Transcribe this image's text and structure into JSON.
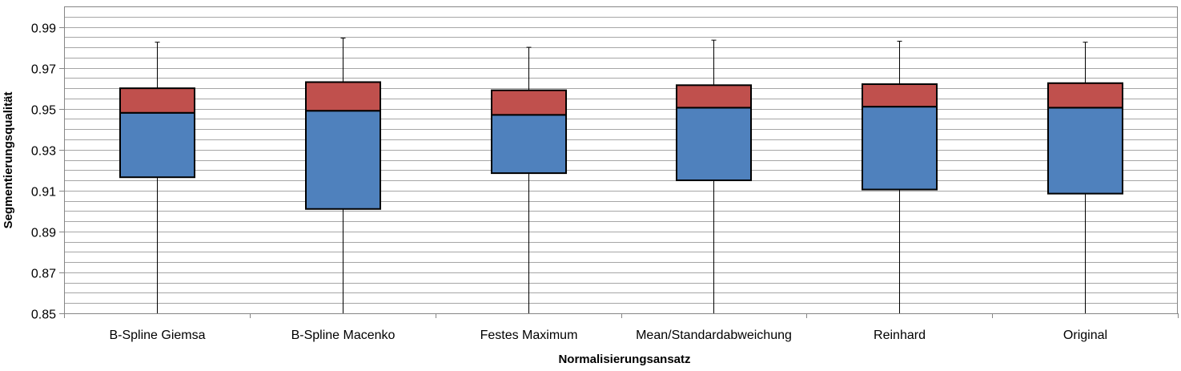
{
  "chart_data": {
    "type": "box",
    "title": "",
    "xlabel": "Normalisierungsansatz",
    "ylabel": "Segmentierungsqualität",
    "ylim": [
      0.85,
      1.0
    ],
    "yticks": [
      0.85,
      0.87,
      0.89,
      0.91,
      0.93,
      0.95,
      0.97,
      0.99
    ],
    "grid": true,
    "legend": "none",
    "colors": {
      "lower_box": "#4f81bd",
      "upper_box": "#c0504d",
      "grid": "#a6a6a6",
      "axis": "#868686"
    },
    "categories": [
      "B-Spline Giemsa",
      "B-Spline Macenko",
      "Festes Maximum",
      "Mean/Standardabweichung",
      "Reinhard",
      "Original"
    ],
    "series": [
      {
        "min": 0.85,
        "q1": 0.9165,
        "median": 0.948,
        "q3": 0.96,
        "max": 0.9825
      },
      {
        "min": 0.85,
        "q1": 0.901,
        "median": 0.949,
        "q3": 0.963,
        "max": 0.9845
      },
      {
        "min": 0.85,
        "q1": 0.9185,
        "median": 0.947,
        "q3": 0.959,
        "max": 0.98
      },
      {
        "min": 0.85,
        "q1": 0.915,
        "median": 0.9505,
        "q3": 0.9615,
        "max": 0.9835
      },
      {
        "min": 0.85,
        "q1": 0.9105,
        "median": 0.951,
        "q3": 0.962,
        "max": 0.983
      },
      {
        "min": 0.85,
        "q1": 0.9085,
        "median": 0.9505,
        "q3": 0.9625,
        "max": 0.9825
      }
    ]
  }
}
